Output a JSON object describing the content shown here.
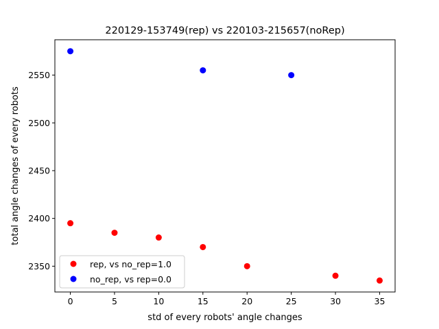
{
  "chart_data": {
    "type": "scatter",
    "title": "220129-153749(rep) vs 220103-215657(noRep)",
    "xlabel": "std of every robots' angle changes",
    "ylabel": "total angle changes of every robots",
    "xlim": [
      -1.75,
      36.75
    ],
    "ylim": [
      2323,
      2587
    ],
    "xticks": [
      0,
      5,
      10,
      15,
      20,
      25,
      30,
      35
    ],
    "yticks": [
      2350,
      2400,
      2450,
      2500,
      2550
    ],
    "grid": false,
    "legend_position": "lower-left",
    "series": [
      {
        "name": "rep, vs no_rep=1.0",
        "color": "#ff0000",
        "x": [
          0,
          5,
          10,
          15,
          20,
          30,
          35
        ],
        "y": [
          2395,
          2385,
          2380,
          2370,
          2350,
          2340,
          2335
        ]
      },
      {
        "name": "no_rep, vs rep=0.0",
        "color": "#0000ff",
        "x": [
          0,
          15,
          25
        ],
        "y": [
          2575,
          2555,
          2550
        ]
      }
    ]
  }
}
